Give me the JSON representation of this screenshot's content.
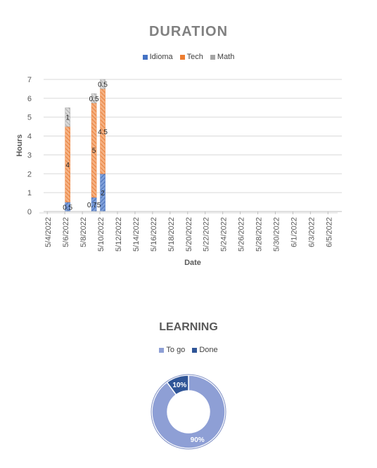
{
  "chart_data": [
    {
      "type": "bar",
      "stacked": true,
      "title": "DURATION",
      "xlabel": "Date",
      "ylabel": "Hours",
      "ylim": [
        0,
        7
      ],
      "yticks": [
        "0",
        "1",
        "2",
        "3",
        "4",
        "5",
        "6",
        "7"
      ],
      "categories": [
        "5/4/2022",
        "5/5/2022",
        "5/6/2022",
        "5/7/2022",
        "5/8/2022",
        "5/9/2022",
        "5/10/2022",
        "5/11/2022",
        "5/12/2022",
        "5/13/2022",
        "5/14/2022",
        "5/15/2022",
        "5/16/2022",
        "5/17/2022",
        "5/18/2022",
        "5/19/2022",
        "5/20/2022",
        "5/21/2022",
        "5/22/2022",
        "5/23/2022",
        "5/24/2022",
        "5/25/2022",
        "5/26/2022",
        "5/27/2022",
        "5/28/2022",
        "5/29/2022",
        "5/30/2022",
        "5/31/2022",
        "6/1/2022",
        "6/2/2022",
        "6/3/2022",
        "6/4/2022",
        "6/5/2022",
        "6/6/2022"
      ],
      "tick_labels": [
        "5/4/2022",
        "5/6/2022",
        "5/8/2022",
        "5/10/2022",
        "5/12/2022",
        "5/14/2022",
        "5/16/2022",
        "5/18/2022",
        "5/20/2022",
        "5/22/2022",
        "5/24/2022",
        "5/26/2022",
        "5/28/2022",
        "5/30/2022",
        "6/1/2022",
        "6/3/2022",
        "6/5/2022"
      ],
      "legend_position": "top",
      "grid": true,
      "series": [
        {
          "name": "Idioma",
          "color": "#4472c4",
          "values": [
            0,
            0,
            0.5,
            0,
            0,
            0.75,
            2,
            0,
            0,
            0,
            0,
            0,
            0,
            0,
            0,
            0,
            0,
            0,
            0,
            0,
            0,
            0,
            0,
            0,
            0,
            0,
            0,
            0,
            0,
            0,
            0,
            0,
            0,
            0
          ],
          "labels": [
            null,
            null,
            "0.5",
            null,
            null,
            "0.75",
            "2",
            null,
            null,
            null,
            null,
            null,
            null,
            null,
            null,
            null,
            null,
            null,
            null,
            null,
            null,
            null,
            null,
            null,
            null,
            null,
            null,
            null,
            null,
            null,
            null,
            null,
            null,
            null
          ]
        },
        {
          "name": "Tech",
          "color": "#ed7d31",
          "values": [
            0,
            0,
            4,
            0,
            0,
            5,
            4.5,
            0,
            0,
            0,
            0,
            0,
            0,
            0,
            0,
            0,
            0,
            0,
            0,
            0,
            0,
            0,
            0,
            0,
            0,
            0,
            0,
            0,
            0,
            0,
            0,
            0,
            0,
            0
          ],
          "labels": [
            null,
            null,
            "4",
            null,
            null,
            "5",
            "4.5",
            null,
            null,
            null,
            null,
            null,
            null,
            null,
            null,
            null,
            null,
            null,
            null,
            null,
            null,
            null,
            null,
            null,
            null,
            null,
            null,
            null,
            null,
            null,
            null,
            null,
            null,
            null
          ]
        },
        {
          "name": "Math",
          "color": "#a5a5a5",
          "values": [
            0,
            0,
            1,
            0,
            0,
            0.5,
            0.5,
            0,
            0,
            0,
            0,
            0,
            0,
            0,
            0,
            0,
            0,
            0,
            0,
            0,
            0,
            0,
            0,
            0,
            0,
            0,
            0,
            0,
            0,
            0,
            0,
            0,
            0,
            0
          ],
          "labels": [
            null,
            null,
            "1",
            null,
            null,
            "0.5",
            "0.5",
            null,
            null,
            null,
            null,
            null,
            null,
            null,
            null,
            null,
            null,
            null,
            null,
            null,
            null,
            null,
            null,
            null,
            null,
            null,
            null,
            null,
            null,
            null,
            null,
            null,
            null,
            null
          ]
        }
      ]
    },
    {
      "type": "pie",
      "donut": true,
      "title": "LEARNING",
      "legend_position": "top",
      "slices": [
        {
          "name": "To go",
          "value": 90,
          "label": "90%",
          "color": "#8e9fd5"
        },
        {
          "name": "Done",
          "value": 10,
          "label": "10%",
          "color": "#2f5597"
        }
      ]
    }
  ]
}
